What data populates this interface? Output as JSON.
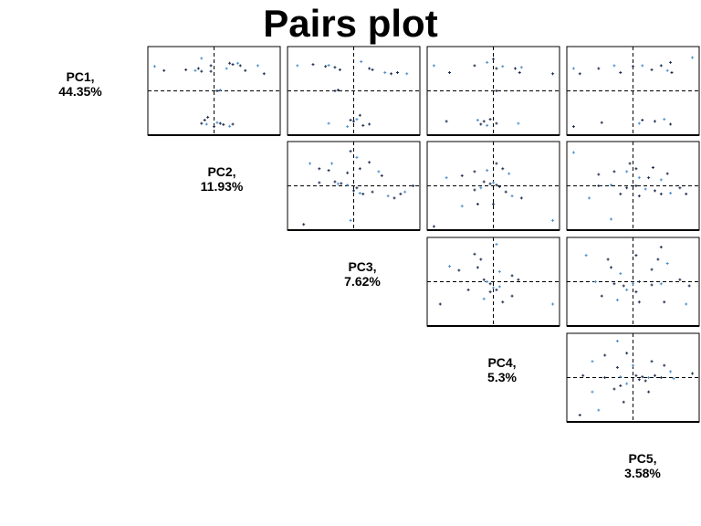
{
  "title": "Pairs plot",
  "colors": {
    "frame": "#000000",
    "crosshair": "#000000",
    "point_dark": "#1a2a4a",
    "point_light": "#4d8fcc"
  },
  "diagonal_labels": [
    {
      "name": "PC1,",
      "variance": "44.35%"
    },
    {
      "name": "PC2,",
      "variance": "11.93%"
    },
    {
      "name": "PC3,",
      "variance": "7.62%"
    },
    {
      "name": "PC4,",
      "variance": "5.3%"
    },
    {
      "name": "PC5,",
      "variance": "3.58%"
    }
  ],
  "chart_data": {
    "type": "scatter",
    "title": "Pairs plot",
    "variables": [
      "PC1",
      "PC2",
      "PC3",
      "PC4",
      "PC5"
    ],
    "variance_explained_percent": [
      44.35,
      11.93,
      7.62,
      5.3,
      3.58
    ],
    "layout": "upper-triangle matrix, diagonal shows labels",
    "axis_ticks": "none",
    "crosshair_at": [
      0,
      0
    ],
    "panels": [
      {
        "row": "PC1",
        "col": "PC2",
        "xlim": [
          -1,
          1
        ],
        "ylim": [
          -1,
          1
        ],
        "points": [
          [
            -0.95,
            0.6
          ],
          [
            -0.8,
            0.5
          ],
          [
            -0.45,
            0.52
          ],
          [
            -0.3,
            0.5
          ],
          [
            -0.25,
            0.55
          ],
          [
            -0.2,
            0.48
          ],
          [
            -0.2,
            0.8
          ],
          [
            -0.05,
            0.62
          ],
          [
            -0.05,
            0.48
          ],
          [
            0.2,
            0.55
          ],
          [
            0.25,
            0.68
          ],
          [
            0.3,
            0.65
          ],
          [
            0.38,
            0.68
          ],
          [
            0.42,
            0.62
          ],
          [
            0.5,
            0.5
          ],
          [
            0.7,
            0.62
          ],
          [
            0.8,
            0.42
          ],
          [
            0.05,
            0.0
          ],
          [
            0.1,
            0.02
          ],
          [
            -0.2,
            -0.8
          ],
          [
            -0.15,
            -0.72
          ],
          [
            -0.12,
            -0.82
          ],
          [
            -0.1,
            -0.65
          ],
          [
            0.0,
            -0.88
          ],
          [
            0.05,
            -0.78
          ],
          [
            0.1,
            -0.8
          ],
          [
            0.15,
            -0.83
          ],
          [
            0.25,
            -0.87
          ],
          [
            0.3,
            -0.82
          ]
        ]
      },
      {
        "row": "PC1",
        "col": "PC3",
        "xlim": [
          -1,
          1
        ],
        "ylim": [
          -1,
          1
        ],
        "points": [
          [
            -0.9,
            0.62
          ],
          [
            -0.65,
            0.65
          ],
          [
            -0.45,
            0.6
          ],
          [
            -0.4,
            0.63
          ],
          [
            -0.3,
            0.58
          ],
          [
            -0.22,
            0.52
          ],
          [
            0.12,
            0.72
          ],
          [
            0.25,
            0.55
          ],
          [
            0.3,
            0.52
          ],
          [
            0.5,
            0.45
          ],
          [
            0.6,
            0.42
          ],
          [
            0.7,
            0.45
          ],
          [
            0.85,
            0.42
          ],
          [
            -0.3,
            0.0
          ],
          [
            -0.25,
            0.02
          ],
          [
            -0.4,
            -0.8
          ],
          [
            -0.05,
            -0.72
          ],
          [
            0.0,
            -0.75
          ],
          [
            0.05,
            -0.7
          ],
          [
            0.1,
            -0.6
          ],
          [
            0.15,
            -0.85
          ],
          [
            -0.1,
            -0.88
          ],
          [
            0.25,
            -0.82
          ]
        ]
      },
      {
        "row": "PC1",
        "col": "PC4",
        "xlim": [
          -1,
          1
        ],
        "ylim": [
          -1,
          1
        ],
        "points": [
          [
            -0.95,
            0.62
          ],
          [
            -0.7,
            0.45
          ],
          [
            -0.3,
            0.62
          ],
          [
            -0.1,
            0.7
          ],
          [
            0.0,
            0.78
          ],
          [
            0.05,
            0.55
          ],
          [
            0.15,
            0.6
          ],
          [
            0.35,
            0.55
          ],
          [
            0.42,
            0.45
          ],
          [
            0.45,
            0.58
          ],
          [
            0.95,
            0.42
          ],
          [
            -0.75,
            -0.75
          ],
          [
            -0.25,
            -0.72
          ],
          [
            -0.2,
            -0.82
          ],
          [
            -0.15,
            -0.75
          ],
          [
            -0.1,
            -0.85
          ],
          [
            0.05,
            -0.0
          ],
          [
            0.05,
            -0.8
          ],
          [
            0.4,
            -0.8
          ],
          [
            -0.05,
            -0.7
          ]
        ]
      },
      {
        "row": "PC1",
        "col": "PC5",
        "xlim": [
          -1,
          1
        ],
        "ylim": [
          -1,
          1
        ],
        "points": [
          [
            -0.95,
            0.55
          ],
          [
            -0.85,
            0.42
          ],
          [
            -0.55,
            0.55
          ],
          [
            -0.3,
            0.62
          ],
          [
            -0.2,
            0.45
          ],
          [
            0.0,
            0.6
          ],
          [
            0.15,
            0.62
          ],
          [
            0.3,
            0.52
          ],
          [
            0.45,
            0.62
          ],
          [
            0.55,
            0.5
          ],
          [
            0.62,
            0.45
          ],
          [
            0.6,
            0.7
          ],
          [
            0.95,
            0.82
          ],
          [
            -0.95,
            -0.88
          ],
          [
            -0.5,
            -0.78
          ],
          [
            0.1,
            -0.8
          ],
          [
            0.15,
            -0.72
          ],
          [
            0.35,
            -0.75
          ],
          [
            0.5,
            -0.7
          ],
          [
            0.6,
            -0.82
          ]
        ]
      },
      {
        "row": "PC2",
        "col": "PC3",
        "xlim": [
          -1,
          1
        ],
        "ylim": [
          -1,
          1
        ],
        "points": [
          [
            -0.7,
            0.55
          ],
          [
            -0.55,
            0.42
          ],
          [
            -0.4,
            0.38
          ],
          [
            -0.35,
            0.55
          ],
          [
            -0.1,
            0.32
          ],
          [
            -0.05,
            0.85
          ],
          [
            0.05,
            0.7
          ],
          [
            0.1,
            0.42
          ],
          [
            0.25,
            0.58
          ],
          [
            0.4,
            0.35
          ],
          [
            0.45,
            0.25
          ],
          [
            -0.3,
            0.1
          ],
          [
            -0.25,
            0.05
          ],
          [
            -0.2,
            0.06
          ],
          [
            -0.55,
            0.08
          ],
          [
            -0.1,
            0.02
          ],
          [
            0.05,
            -0.05
          ],
          [
            0.0,
            -0.12
          ],
          [
            0.1,
            -0.18
          ],
          [
            0.15,
            -0.2
          ],
          [
            0.3,
            -0.15
          ],
          [
            0.55,
            -0.25
          ],
          [
            0.65,
            -0.3
          ],
          [
            0.75,
            -0.2
          ],
          [
            0.82,
            -0.15
          ],
          [
            0.95,
            0.0
          ],
          [
            -0.8,
            -0.95
          ],
          [
            -0.05,
            -0.85
          ]
        ]
      },
      {
        "row": "PC2",
        "col": "PC4",
        "xlim": [
          -1,
          1
        ],
        "ylim": [
          -1,
          1
        ],
        "points": [
          [
            -0.75,
            0.2
          ],
          [
            -0.5,
            0.25
          ],
          [
            -0.3,
            0.35
          ],
          [
            -0.1,
            0.38
          ],
          [
            0.05,
            0.55
          ],
          [
            0.15,
            0.42
          ],
          [
            0.25,
            0.3
          ],
          [
            -0.15,
            0.1
          ],
          [
            -0.05,
            0.05
          ],
          [
            0.0,
            0.08
          ],
          [
            0.05,
            0.02
          ],
          [
            0.1,
            -0.02
          ],
          [
            -0.2,
            -0.05
          ],
          [
            -0.3,
            -0.1
          ],
          [
            0.2,
            -0.15
          ],
          [
            0.3,
            -0.25
          ],
          [
            0.45,
            -0.3
          ],
          [
            -0.25,
            -0.45
          ],
          [
            -0.5,
            -0.5
          ],
          [
            0.0,
            -0.45
          ],
          [
            -0.95,
            -1.0
          ],
          [
            0.95,
            -0.85
          ]
        ]
      },
      {
        "row": "PC2",
        "col": "PC5",
        "xlim": [
          -1,
          1
        ],
        "ylim": [
          -1,
          1
        ],
        "points": [
          [
            -0.95,
            0.82
          ],
          [
            -0.55,
            0.28
          ],
          [
            -0.3,
            0.35
          ],
          [
            -0.1,
            0.35
          ],
          [
            -0.05,
            0.55
          ],
          [
            0.05,
            0.42
          ],
          [
            0.1,
            0.2
          ],
          [
            0.25,
            0.2
          ],
          [
            0.32,
            0.45
          ],
          [
            0.45,
            0.15
          ],
          [
            0.55,
            0.3
          ],
          [
            -0.55,
            0.0
          ],
          [
            -0.35,
            0.02
          ],
          [
            -0.1,
            -0.05
          ],
          [
            0.05,
            0.0
          ],
          [
            0.2,
            -0.08
          ],
          [
            0.35,
            -0.12
          ],
          [
            0.45,
            -0.2
          ],
          [
            0.6,
            -0.18
          ],
          [
            0.75,
            -0.05
          ],
          [
            0.85,
            -0.2
          ],
          [
            -0.7,
            -0.3
          ],
          [
            -0.2,
            -0.2
          ],
          [
            0.1,
            -0.25
          ],
          [
            -0.35,
            -0.82
          ]
        ]
      },
      {
        "row": "PC3",
        "col": "PC4",
        "xlim": [
          -1,
          1
        ],
        "ylim": [
          -1,
          1
        ],
        "points": [
          [
            0.05,
            0.92
          ],
          [
            -0.3,
            0.68
          ],
          [
            -0.2,
            0.55
          ],
          [
            -0.7,
            0.38
          ],
          [
            -0.55,
            0.28
          ],
          [
            -0.25,
            0.35
          ],
          [
            0.1,
            0.25
          ],
          [
            0.3,
            0.15
          ],
          [
            -0.15,
            0.05
          ],
          [
            -0.1,
            0.0
          ],
          [
            0.4,
            0.05
          ],
          [
            -0.05,
            -0.05
          ],
          [
            0.0,
            -0.15
          ],
          [
            0.05,
            -0.2
          ],
          [
            -0.05,
            -0.25
          ],
          [
            0.1,
            -0.12
          ],
          [
            -0.4,
            -0.2
          ],
          [
            0.3,
            -0.35
          ],
          [
            -0.15,
            -0.42
          ],
          [
            0.15,
            -0.5
          ],
          [
            -0.85,
            -0.55
          ],
          [
            0.95,
            -0.55
          ]
        ]
      },
      {
        "row": "PC3",
        "col": "PC5",
        "xlim": [
          -1,
          1
        ],
        "ylim": [
          -1,
          1
        ],
        "points": [
          [
            -0.75,
            0.65
          ],
          [
            -0.4,
            0.55
          ],
          [
            -0.35,
            0.35
          ],
          [
            -0.2,
            0.2
          ],
          [
            0.05,
            0.65
          ],
          [
            0.4,
            0.55
          ],
          [
            0.55,
            0.45
          ],
          [
            0.3,
            0.3
          ],
          [
            0.45,
            0.85
          ],
          [
            -0.6,
            0.0
          ],
          [
            -0.3,
            -0.05
          ],
          [
            -0.15,
            -0.1
          ],
          [
            0.0,
            -0.05
          ],
          [
            0.1,
            0.0
          ],
          [
            0.3,
            -0.08
          ],
          [
            0.45,
            -0.05
          ],
          [
            0.75,
            0.05
          ],
          [
            0.9,
            -0.1
          ],
          [
            -0.1,
            -0.2
          ],
          [
            0.05,
            -0.25
          ],
          [
            -0.5,
            -0.35
          ],
          [
            -0.25,
            -0.45
          ],
          [
            0.1,
            -0.5
          ],
          [
            0.5,
            -0.5
          ],
          [
            0.85,
            -0.55
          ]
        ]
      },
      {
        "row": "PC4",
        "col": "PC5",
        "xlim": [
          -1,
          1
        ],
        "ylim": [
          -1,
          1
        ],
        "points": [
          [
            -0.25,
            0.9
          ],
          [
            -0.45,
            0.55
          ],
          [
            -0.1,
            0.6
          ],
          [
            -0.65,
            0.4
          ],
          [
            -0.8,
            0.05
          ],
          [
            -0.25,
            0.25
          ],
          [
            0.0,
            0.3
          ],
          [
            0.3,
            0.4
          ],
          [
            0.5,
            0.3
          ],
          [
            0.6,
            0.15
          ],
          [
            0.95,
            0.1
          ],
          [
            -0.45,
            0.0
          ],
          [
            -0.2,
            0.02
          ],
          [
            0.05,
            0.05
          ],
          [
            0.15,
            0.02
          ],
          [
            0.25,
            0.0
          ],
          [
            0.35,
            0.05
          ],
          [
            0.45,
            0.0
          ],
          [
            0.65,
            -0.02
          ],
          [
            0.1,
            -0.05
          ],
          [
            0.2,
            -0.08
          ],
          [
            -0.1,
            -0.15
          ],
          [
            -0.2,
            -0.2
          ],
          [
            -0.3,
            -0.28
          ],
          [
            -0.65,
            -0.35
          ],
          [
            0.25,
            -0.35
          ],
          [
            -0.15,
            -0.6
          ],
          [
            -0.55,
            -0.8
          ],
          [
            -0.85,
            -0.92
          ]
        ]
      }
    ]
  }
}
